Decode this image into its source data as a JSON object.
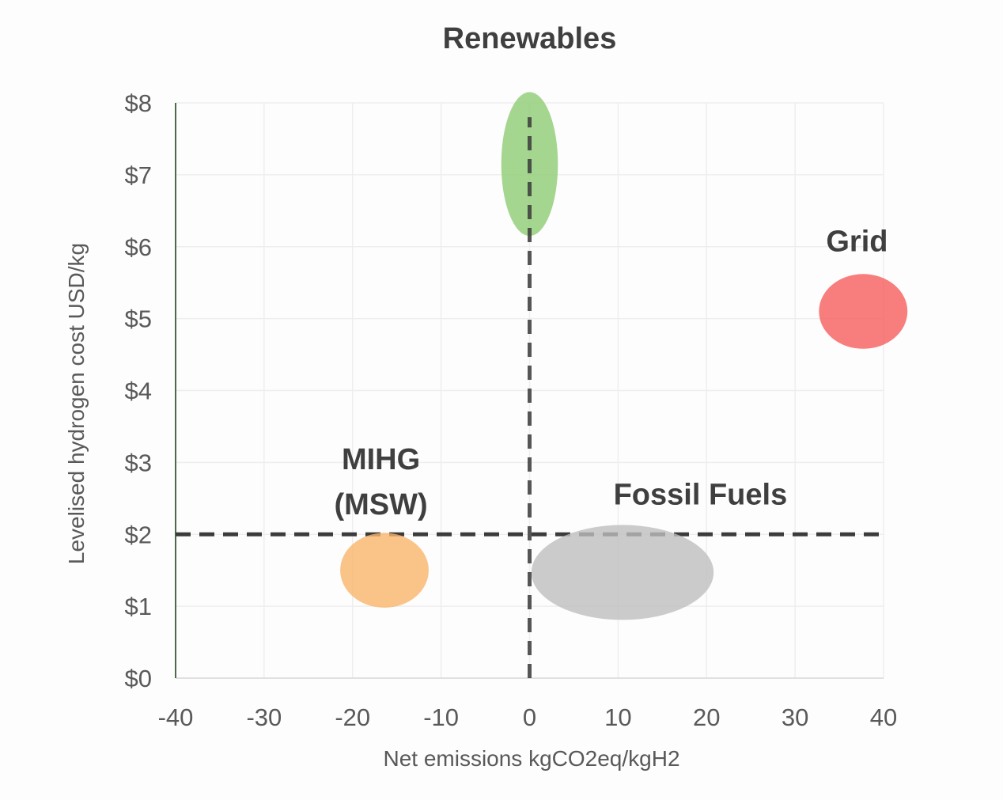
{
  "chart_data": {
    "type": "scatter",
    "variant": "ellipse-range-bubbles",
    "title": "",
    "xlabel": "Net emissions kgCO2eq/kgH2",
    "ylabel": "Levelised hydrogen cost USD/kg",
    "xlim": [
      -40,
      40
    ],
    "ylim": [
      0,
      8
    ],
    "x_ticks": [
      -40,
      -30,
      -20,
      -10,
      0,
      10,
      20,
      30,
      40
    ],
    "x_tick_labels": [
      "-40",
      "-30",
      "-20",
      "-10",
      "0",
      "10",
      "20",
      "30",
      "40"
    ],
    "y_ticks": [
      0,
      1,
      2,
      3,
      4,
      5,
      6,
      7,
      8
    ],
    "y_tick_labels": [
      "$0",
      "$1",
      "$2",
      "$3",
      "$4",
      "$5",
      "$6",
      "$7",
      "$8"
    ],
    "grid": true,
    "legend_position": "none",
    "series": [
      {
        "name": "Renewables",
        "label_lines": [
          "Renewables"
        ],
        "x": 0,
        "y": 7.15,
        "x_extent": 3.2,
        "y_extent": 1.0,
        "color": "#8FCC73",
        "label_x": 0,
        "label_y": 8.9
      },
      {
        "name": "Grid",
        "label_lines": [
          "Grid"
        ],
        "x": 37.7,
        "y": 5.1,
        "x_extent": 5.0,
        "y_extent": 0.52,
        "color": "#F65D5D",
        "label_x": 37.0,
        "label_y": 6.08
      },
      {
        "name": "MIHG (MSW)",
        "label_lines": [
          "MIHG",
          "(MSW)"
        ],
        "x": -16.4,
        "y": 1.5,
        "x_extent": 5.0,
        "y_extent": 0.52,
        "color": "#F9B56C",
        "label_x": -16.8,
        "label_y": 3.05
      },
      {
        "name": "Fossil Fuels",
        "label_lines": [
          "Fossil Fuels"
        ],
        "x": 10.5,
        "y": 1.47,
        "x_extent": 10.3,
        "y_extent": 0.66,
        "color": "#BEBEBE",
        "label_x": 19.3,
        "label_y": 2.56
      }
    ],
    "reference_lines": {
      "horizontal": {
        "y": 2,
        "x_start": -40,
        "x_end": 40
      },
      "vertical": {
        "x": 0,
        "y_start": 0,
        "y_end": 7.8
      }
    },
    "colors": {
      "dash_line": "#3b3b3b",
      "gridline": "#eeeeee",
      "y_axis_line": "#4b6b4b",
      "x_axis_line": "#d9d9d9",
      "tick_text": "#595959",
      "label_text": "#3f3f3f"
    }
  }
}
